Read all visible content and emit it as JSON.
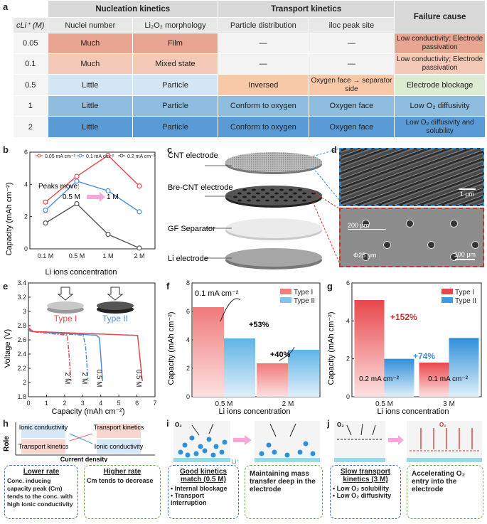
{
  "panel_labels": {
    "a": "a",
    "b": "b",
    "c": "c",
    "d": "d",
    "e": "e",
    "f": "f",
    "g": "g",
    "h": "h",
    "i": "i",
    "j": "j"
  },
  "table": {
    "group_headers": {
      "nucleation": "Nucleation kinetics",
      "transport": "Transport kinetics",
      "failure": "Failure cause"
    },
    "col_headers": {
      "cli": "cLi⁺ (M)",
      "nuclei": "Nuclei number",
      "morph": "Li₂O₂ morphology",
      "dist": "Particle distribution",
      "peak": "iloc peak site"
    },
    "rows": [
      {
        "c": "0.05",
        "n": "Much",
        "m": "Film",
        "d": "—",
        "p": "—",
        "f": "Low conductivity; Electrode passivation"
      },
      {
        "c": "0.1",
        "n": "Much",
        "m": "Mixed state",
        "d": "—",
        "p": "—",
        "f": "Low conductivity; Electrode passivation"
      },
      {
        "c": "0.5",
        "n": "Little",
        "m": "Particle",
        "d": "Inversed",
        "p": "Oxygen face → separator side",
        "f": "Electrode blockage"
      },
      {
        "c": "1",
        "n": "Little",
        "m": "Particle",
        "d": "Conform to oxygen",
        "p": "Oxygen face",
        "f": "Low O₂ diffusivity"
      },
      {
        "c": "2",
        "n": "Little",
        "m": "Particle",
        "d": "Conform to oxygen",
        "p": "Oxygen face",
        "f": "Low O₂ diffusivity and solubility"
      }
    ]
  },
  "panel_c": {
    "labels": [
      "CNT electrode",
      "Bre-CNT electrode",
      "GF Separator",
      "Li electrode"
    ]
  },
  "panel_d": {
    "scale_top": "1 μm",
    "scale_bottom": "100 μm",
    "spacing": "200 μm",
    "hole": "Φ25 μm"
  },
  "panel_e_text": {
    "type1": "Type I",
    "type2": "Type II"
  },
  "panel_h": {
    "role": "Role",
    "x": "Current density",
    "q1": "Ionic conductivity",
    "q2": "Transport kinetics",
    "q3": "Transport kinetics",
    "q4": "Ionic conductivity",
    "lower_title": "Lower rate",
    "lower_body": "Conc. inducing capacity peak (Cm) tends to the conc. with high ionic conductivity",
    "higher_title": "Higher rate",
    "higher_body": "Cm tends to decrease"
  },
  "panel_i": {
    "o2": "O₂",
    "li": "Li⁺",
    "title": "Good kinetics match (0.5 M)",
    "b1": "Internal blockage",
    "b2": "Transport interruption",
    "note": "Maintaining mass transfer deep in the electrode"
  },
  "panel_j": {
    "o2a": "O₂",
    "o2b": "O₂",
    "title": "Slow transport kinetics (3 M)",
    "b1": "Low O₂ solubility",
    "b2": "Low O₂ diffusivity",
    "note": "Accelerating O₂ entry into the electrode"
  },
  "chart_data": [
    {
      "panel": "b",
      "type": "line",
      "categories": [
        "0.1 M",
        "0.5 M",
        "1 M",
        "2 M"
      ],
      "series": [
        {
          "name": "0.05 mA cm⁻²",
          "values": [
            2.9,
            4.5,
            5.8,
            3.9
          ],
          "color": "#e8474a"
        },
        {
          "name": "0.1 mA cm⁻²",
          "values": [
            2.4,
            4.2,
            3.6,
            2.3
          ],
          "color": "#4f8fd6"
        },
        {
          "name": "0.2 mA cm⁻²",
          "values": [
            1.6,
            2.8,
            0.9,
            0.05
          ],
          "color": "#555555"
        }
      ],
      "xlabel": "Li ions concentration",
      "ylabel": "Capacity (mAh cm⁻²)",
      "ylim": [
        0,
        6
      ],
      "annotation": "Peaks move:",
      "ann_from": "0.5 M",
      "ann_to": "1 M"
    },
    {
      "panel": "e",
      "type": "line",
      "xlabel": "Capacity (mAh cm⁻²)",
      "ylabel": "Voltage (V)",
      "xlim": [
        0,
        7
      ],
      "ylim": [
        1.8,
        3.4
      ],
      "series": [
        {
          "name": "Type I 2 M",
          "end": 2.35,
          "color": "#e8474a",
          "dash": "6,2,2,2"
        },
        {
          "name": "Type II 2 M",
          "end": 3.3,
          "color": "#4f8fd6",
          "dash": "6,2,2,2"
        },
        {
          "name": "Type II 0.5 M",
          "end": 4.1,
          "color": "#4f8fd6",
          "dash": ""
        },
        {
          "name": "Type I 0.5 M",
          "end": 6.3,
          "color": "#e8474a",
          "dash": ""
        }
      ],
      "curve_labels": [
        "2 M",
        "2 M",
        "0.5 M",
        "0.5 M"
      ]
    },
    {
      "panel": "f",
      "type": "bar",
      "categories": [
        "0.5 M",
        "2 M"
      ],
      "series": [
        {
          "name": "Type I",
          "values": [
            6.3,
            2.35
          ],
          "color": "#f08080"
        },
        {
          "name": "Type II",
          "values": [
            4.1,
            3.3
          ],
          "color": "#7ec3ea"
        }
      ],
      "xlabel": "Li ions concentration",
      "ylabel": "Capacity (mAh cm⁻²)",
      "ylim": [
        0,
        8
      ],
      "annotations": [
        "0.1 mA cm⁻²",
        "+53%",
        "+40%"
      ]
    },
    {
      "panel": "g",
      "type": "bar",
      "categories": [
        "0.5 M",
        "3 M"
      ],
      "series": [
        {
          "name": "Type I",
          "values": [
            5.1,
            1.8
          ],
          "color": "#e8474a"
        },
        {
          "name": "Type II",
          "values": [
            2.0,
            3.1
          ],
          "color": "#3d9be0"
        }
      ],
      "xlabel": "Li ions concentration",
      "ylabel": "Capacity (mAh cm⁻²)",
      "ylim": [
        0,
        6
      ],
      "annotations": [
        "+152%",
        "+74%",
        "0.2 mA cm⁻²",
        "0.1 mA cm⁻²"
      ]
    }
  ]
}
